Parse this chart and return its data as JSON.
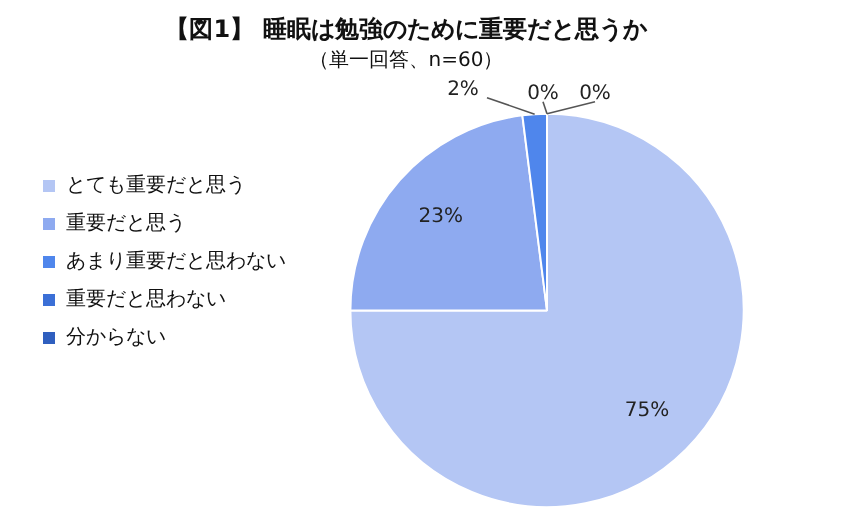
{
  "chart_data": {
    "type": "pie",
    "title": "【図1】 睡眠は勉強のために重要だと思うか",
    "subtitle": "（単一回答、n=60）",
    "categories": [
      "とても重要だと思う",
      "重要だと思う",
      "あまり重要だと思わない",
      "重要だと思わない",
      "分からない"
    ],
    "values": [
      75,
      23,
      2,
      0,
      0
    ],
    "colors": [
      "#b4c6f4",
      "#8eaaf0",
      "#4f86ec",
      "#3b6fd6",
      "#2f5fbf"
    ],
    "value_labels": [
      "75%",
      "23%",
      "2%",
      "0%",
      "0%"
    ],
    "legend": "left"
  }
}
